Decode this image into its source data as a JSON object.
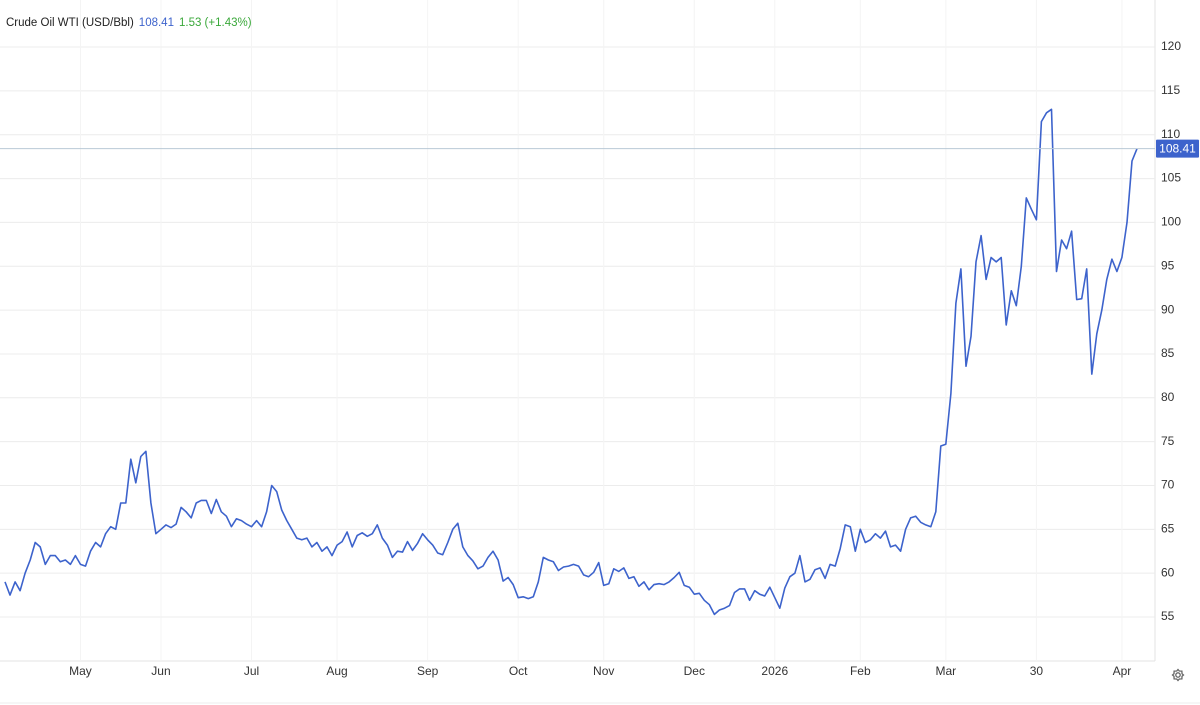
{
  "chart_data": {
    "type": "line",
    "title": "Crude Oil WTI (USD/Bbl)",
    "change": "1.53 (+1.43%)",
    "series": [
      {
        "name": "Crude Oil WTI",
        "color": "#3d63cc",
        "values": [
          59,
          57.5,
          59,
          58,
          60,
          61.5,
          63.5,
          63,
          61,
          62,
          62,
          61.3,
          61.5,
          61,
          62,
          61,
          60.8,
          62.5,
          63.5,
          63,
          64.5,
          65.3,
          65,
          68,
          68,
          73,
          70.3,
          73.3,
          73.9,
          68,
          64.5,
          65,
          65.5,
          65.2,
          65.6,
          67.5,
          67,
          66.3,
          68,
          68.3,
          68.3,
          66.8,
          68.4,
          67,
          66.5,
          65.3,
          66.2,
          66,
          65.6,
          65.3,
          66,
          65.3,
          67,
          70,
          69.3,
          67.2,
          66,
          65,
          64,
          63.8,
          64,
          63,
          63.5,
          62.5,
          63,
          62,
          63.2,
          63.6,
          64.7,
          63,
          64.3,
          64.6,
          64.2,
          64.5,
          65.5,
          64,
          63.2,
          61.8,
          62.5,
          62.4,
          63.6,
          62.6,
          63.4,
          64.5,
          63.8,
          63.2,
          62.3,
          62.1,
          63.5,
          65,
          65.7,
          63,
          62,
          61.4,
          60.5,
          60.8,
          61.8,
          62.5,
          61.5,
          59.1,
          59.5,
          58.7,
          57.2,
          57.3,
          57.1,
          57.3,
          59,
          61.8,
          61.5,
          61.3,
          60.3,
          60.7,
          60.8,
          61,
          60.8,
          59.8,
          59.6,
          60.1,
          61.2,
          58.6,
          58.8,
          60.5,
          60.2,
          60.6,
          59.4,
          59.6,
          58.5,
          59,
          58.1,
          58.7,
          58.8,
          58.7,
          59,
          59.5,
          60.1,
          58.6,
          58.4,
          57.6,
          57.7,
          56.9,
          56.4,
          55.3,
          55.8,
          56,
          56.3,
          57.8,
          58.2,
          58.2,
          56.9,
          58,
          57.6,
          57.4,
          58.4,
          57.2,
          56,
          58.3,
          59.6,
          60,
          62,
          59,
          59.3,
          60.4,
          60.6,
          59.4,
          61,
          60.8,
          62.8,
          65.5,
          65.3,
          62.5,
          65,
          63.5,
          63.8,
          64.5,
          64,
          64.8,
          63,
          63.2,
          62.5,
          65,
          66.3,
          66.5,
          65.8,
          65.5,
          65.3,
          67,
          74.5,
          74.7,
          80.5,
          90.8,
          94.7,
          83.6,
          87,
          95.5,
          98.5,
          93.5,
          96,
          95.5,
          96,
          88.3,
          92.2,
          90.5,
          95,
          102.8,
          101.5,
          100.3,
          111.5,
          112.5,
          112.9,
          94.4,
          98,
          97,
          99,
          91.2,
          91.3,
          94.7,
          82.7,
          87.3,
          90,
          93.5,
          95.8,
          94.4,
          96,
          100,
          107,
          108.41
        ]
      }
    ],
    "xlim": [
      0,
      224
    ],
    "xticks": [
      {
        "value": 15,
        "label": "May"
      },
      {
        "value": 31,
        "label": "Jun"
      },
      {
        "value": 49,
        "label": "Jul"
      },
      {
        "value": 66,
        "label": "Aug"
      },
      {
        "value": 84,
        "label": "Sep"
      },
      {
        "value": 102,
        "label": "Oct"
      },
      {
        "value": 119,
        "label": "Nov"
      },
      {
        "value": 137,
        "label": "Dec"
      },
      {
        "value": 153,
        "label": "2026"
      },
      {
        "value": 170,
        "label": "Feb"
      },
      {
        "value": 187,
        "label": "Mar"
      },
      {
        "value": 205,
        "label": "30"
      },
      {
        "value": 222,
        "label": "Apr"
      }
    ],
    "ylim": [
      50,
      125
    ],
    "yticks": [
      55,
      60,
      65,
      70,
      75,
      80,
      85,
      90,
      95,
      100,
      105,
      110,
      115,
      120
    ],
    "grid": true
  }
}
